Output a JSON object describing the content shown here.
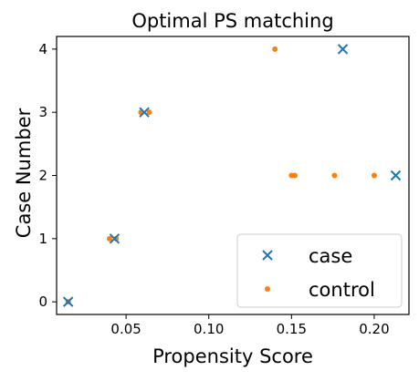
{
  "chart_data": {
    "type": "scatter",
    "title": "Optimal PS matching",
    "xlabel": "Propensity Score",
    "ylabel": "Case Number",
    "xlim": [
      0.008,
      0.221
    ],
    "ylim": [
      -0.2,
      4.2
    ],
    "xticks": [
      0.05,
      0.1,
      0.15,
      0.2
    ],
    "xtick_labels": [
      "0.05",
      "0.10",
      "0.15",
      "0.20"
    ],
    "yticks": [
      0,
      1,
      2,
      3,
      4
    ],
    "ytick_labels": [
      "0",
      "1",
      "2",
      "3",
      "4"
    ],
    "grid": false,
    "legend": {
      "position": "lower-right"
    },
    "series": [
      {
        "name": "case",
        "marker": "x",
        "color": "#1f77b4",
        "points": [
          {
            "x": 0.015,
            "y": 0
          },
          {
            "x": 0.043,
            "y": 1
          },
          {
            "x": 0.061,
            "y": 3
          },
          {
            "x": 0.213,
            "y": 2
          },
          {
            "x": 0.181,
            "y": 4
          }
        ]
      },
      {
        "name": "control",
        "marker": "dot",
        "color": "#ff7f0e",
        "points": [
          {
            "x": 0.015,
            "y": 0
          },
          {
            "x": 0.04,
            "y": 1
          },
          {
            "x": 0.044,
            "y": 1
          },
          {
            "x": 0.059,
            "y": 3
          },
          {
            "x": 0.064,
            "y": 3
          },
          {
            "x": 0.15,
            "y": 2
          },
          {
            "x": 0.152,
            "y": 2
          },
          {
            "x": 0.176,
            "y": 2
          },
          {
            "x": 0.2,
            "y": 2
          },
          {
            "x": 0.14,
            "y": 4
          }
        ]
      }
    ]
  }
}
